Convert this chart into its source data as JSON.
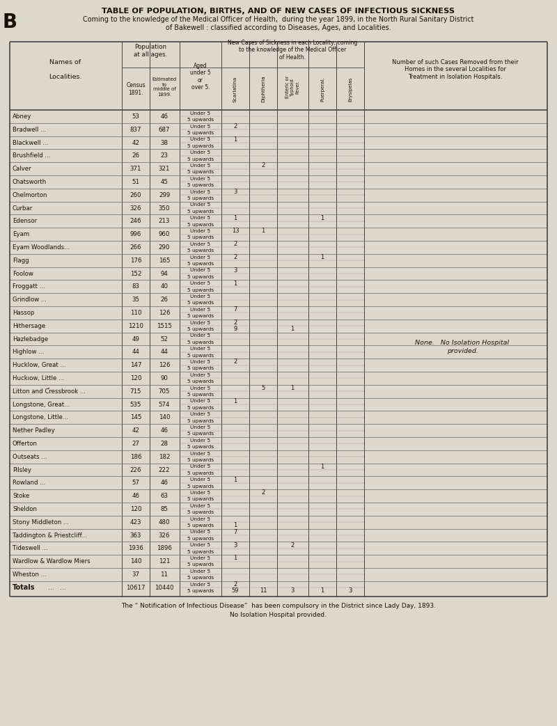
{
  "title1": "TABLE OF POPULATION, BIRTHS, AND OF NEW CASES OF INFECTIOUS SICKNESS",
  "title2": "Coming to the knowledge of the Medical Officer of Health,  during the year 1899, in the North Rural Sanitary District",
  "title3": "of Bakewell : classified according to Diseases, Ages, and Localities.",
  "left_letter": "B",
  "rows": [
    {
      "name": "Abney",
      "dots": "...  ...  ...",
      "census": "53",
      "est": "46",
      "scar_u5": "",
      "scar_5up": "",
      "diph_u5": "",
      "diph_5up": "",
      "ent_u5": "",
      "ent_5up": "",
      "puer_u5": "",
      "puer_5up": "",
      "erys_u5": "",
      "erys_5up": ""
    },
    {
      "name": "Bradwell ...",
      "dots": "...  ...",
      "census": "837",
      "est": "687",
      "scar_u5": "2",
      "scar_5up": "",
      "diph_u5": "",
      "diph_5up": "",
      "ent_u5": "",
      "ent_5up": "",
      "puer_u5": "",
      "puer_5up": "",
      "erys_u5": "",
      "erys_5up": ""
    },
    {
      "name": "Blackwell ...",
      "dots": "...  ...",
      "census": "42",
      "est": "38",
      "scar_u5": "1",
      "scar_5up": "",
      "diph_u5": "",
      "diph_5up": "",
      "ent_u5": "",
      "ent_5up": "",
      "puer_u5": "",
      "puer_5up": "",
      "erys_u5": "",
      "erys_5up": ""
    },
    {
      "name": "Brushfield ...",
      "dots": "...  ...",
      "census": "26",
      "est": "23",
      "scar_u5": "",
      "scar_5up": "",
      "diph_u5": "",
      "diph_5up": "",
      "ent_u5": "",
      "ent_5up": "",
      "puer_u5": "",
      "puer_5up": "",
      "erys_u5": "",
      "erys_5up": ""
    },
    {
      "name": "Calver",
      "dots": "...  ...  ...",
      "census": "371",
      "est": "321",
      "scar_u5": "",
      "scar_5up": "",
      "diph_u5": "2",
      "diph_5up": "",
      "ent_u5": "",
      "ent_5up": "",
      "puer_u5": "",
      "puer_5up": "",
      "erys_u5": "",
      "erys_5up": ""
    },
    {
      "name": "Chatsworth",
      "dots": "...  ...",
      "census": "51",
      "est": "45",
      "scar_u5": "",
      "scar_5up": "",
      "diph_u5": "",
      "diph_5up": "",
      "ent_u5": "",
      "ent_5up": "",
      "puer_u5": "",
      "puer_5up": "",
      "erys_u5": "",
      "erys_5up": ""
    },
    {
      "name": "Chelmorton",
      "dots": "...  ...",
      "census": "260",
      "est": "299",
      "scar_u5": "3",
      "scar_5up": "",
      "diph_u5": "",
      "diph_5up": "",
      "ent_u5": "",
      "ent_5up": "",
      "puer_u5": "",
      "puer_5up": "",
      "erys_u5": "",
      "erys_5up": ""
    },
    {
      "name": "Curbar",
      "dots": "...  ...  ...",
      "census": "326",
      "est": "350",
      "scar_u5": "",
      "scar_5up": "",
      "diph_u5": "",
      "diph_5up": "",
      "ent_u5": "",
      "ent_5up": "",
      "puer_u5": "",
      "puer_5up": "",
      "erys_u5": "",
      "erys_5up": ""
    },
    {
      "name": "Edensor",
      "dots": "...  ...  ...",
      "census": "246",
      "est": "213",
      "scar_u5": "1",
      "scar_5up": "",
      "diph_u5": "",
      "diph_5up": "",
      "ent_u5": "",
      "ent_5up": "",
      "puer_u5": "1",
      "puer_5up": "",
      "erys_u5": "",
      "erys_5up": ""
    },
    {
      "name": "Eyam",
      "dots": "...  ...  ...",
      "census": "996",
      "est": "960",
      "scar_u5": "13",
      "scar_5up": "",
      "diph_u5": "1",
      "diph_5up": "",
      "ent_u5": "",
      "ent_5up": "",
      "puer_u5": "",
      "puer_5up": "",
      "erys_u5": "",
      "erys_5up": ""
    },
    {
      "name": "Eyam Woodlands...",
      "dots": "...",
      "census": "266",
      "est": "290",
      "scar_u5": "2",
      "scar_5up": "",
      "diph_u5": "",
      "diph_5up": "",
      "ent_u5": "",
      "ent_5up": "",
      "puer_u5": "",
      "puer_5up": "",
      "erys_u5": "",
      "erys_5up": ""
    },
    {
      "name": "Flagg",
      "dots": "...  ...  ...",
      "census": "176",
      "est": "165",
      "scar_u5": "2",
      "scar_5up": "",
      "diph_u5": "",
      "diph_5up": "",
      "ent_u5": "",
      "ent_5up": "",
      "puer_u5": "1",
      "puer_5up": "",
      "erys_u5": "",
      "erys_5up": ""
    },
    {
      "name": "Foolow",
      "dots": "...  ...  ...",
      "census": "152",
      "est": "94",
      "scar_u5": "3",
      "scar_5up": "",
      "diph_u5": "",
      "diph_5up": "",
      "ent_u5": "",
      "ent_5up": "",
      "puer_u5": "",
      "puer_5up": "",
      "erys_u5": "",
      "erys_5up": ""
    },
    {
      "name": "Froggatt ...",
      "dots": "...  ...",
      "census": "83",
      "est": "40",
      "scar_u5": "1",
      "scar_5up": "",
      "diph_u5": "",
      "diph_5up": "",
      "ent_u5": "",
      "ent_5up": "",
      "puer_u5": "",
      "puer_5up": "",
      "erys_u5": "",
      "erys_5up": ""
    },
    {
      "name": "Grindlow ...",
      "dots": "...  ...",
      "census": "35",
      "est": "26",
      "scar_u5": "",
      "scar_5up": "",
      "diph_u5": "",
      "diph_5up": "",
      "ent_u5": "",
      "ent_5up": "",
      "puer_u5": "",
      "puer_5up": "",
      "erys_u5": "",
      "erys_5up": ""
    },
    {
      "name": "Hassop",
      "dots": "...  ...  ...",
      "census": "110",
      "est": "126",
      "scar_u5": "7",
      "scar_5up": "",
      "diph_u5": "",
      "diph_5up": "",
      "ent_u5": "",
      "ent_5up": "",
      "puer_u5": "",
      "puer_5up": "",
      "erys_u5": "",
      "erys_5up": ""
    },
    {
      "name": "Hıthersage",
      "dots": "...  ...",
      "census": "1210",
      "est": "1515",
      "scar_u5": "2",
      "scar_5up": "9",
      "diph_u5": "",
      "diph_5up": "",
      "ent_u5": "",
      "ent_5up": "1",
      "puer_u5": "",
      "puer_5up": "",
      "erys_u5": "",
      "erys_5up": ""
    },
    {
      "name": "Hazlebadge",
      "dots": "...  ...",
      "census": "49",
      "est": "52",
      "scar_u5": "",
      "scar_5up": "",
      "diph_u5": "",
      "diph_5up": "",
      "ent_u5": "",
      "ent_5up": "",
      "puer_u5": "",
      "puer_5up": "",
      "erys_u5": "",
      "erys_5up": ""
    },
    {
      "name": "Highlow ...",
      "dots": "...  ...",
      "census": "44",
      "est": "44",
      "scar_u5": "",
      "scar_5up": "",
      "diph_u5": "",
      "diph_5up": "",
      "ent_u5": "",
      "ent_5up": "",
      "puer_u5": "",
      "puer_5up": "",
      "erys_u5": "",
      "erys_5up": ""
    },
    {
      "name": "Hucklow, Great ...",
      "dots": "...",
      "census": "147",
      "est": "126",
      "scar_u5": "2",
      "scar_5up": "",
      "diph_u5": "",
      "diph_5up": "",
      "ent_u5": "",
      "ent_5up": "",
      "puer_u5": "",
      "puer_5up": "",
      "erys_u5": "",
      "erys_5up": ""
    },
    {
      "name": "Huckıow, Little ...",
      "dots": "...",
      "census": "120",
      "est": "90",
      "scar_u5": "",
      "scar_5up": "",
      "diph_u5": "",
      "diph_5up": "",
      "ent_u5": "",
      "ent_5up": "",
      "puer_u5": "",
      "puer_5up": "",
      "erys_u5": "",
      "erys_5up": ""
    },
    {
      "name": "Litton and Ƈressbrook ...",
      "dots": "",
      "census": "715",
      "est": "705",
      "scar_u5": "",
      "scar_5up": "",
      "diph_u5": "5",
      "diph_5up": "",
      "ent_u5": "1",
      "ent_5up": "",
      "puer_u5": "",
      "puer_5up": "",
      "erys_u5": "",
      "erys_5up": ""
    },
    {
      "name": "Longstone, Great...",
      "dots": "...",
      "census": "535",
      "est": "574",
      "scar_u5": "1",
      "scar_5up": "",
      "diph_u5": "",
      "diph_5up": "",
      "ent_u5": "",
      "ent_5up": "",
      "puer_u5": "",
      "puer_5up": "",
      "erys_u5": "",
      "erys_5up": ""
    },
    {
      "name": "Longstone, Little...",
      "dots": "...",
      "census": "145",
      "est": "140",
      "scar_u5": "",
      "scar_5up": "",
      "diph_u5": "",
      "diph_5up": "",
      "ent_u5": "",
      "ent_5up": "",
      "puer_u5": "",
      "puer_5up": "",
      "erys_u5": "",
      "erys_5up": ""
    },
    {
      "name": "Nether Padley",
      "dots": "...  ...",
      "census": "42",
      "est": "46",
      "scar_u5": "",
      "scar_5up": "",
      "diph_u5": "",
      "diph_5up": "",
      "ent_u5": "",
      "ent_5up": "",
      "puer_u5": "",
      "puer_5up": "",
      "erys_u5": "",
      "erys_5up": ""
    },
    {
      "name": "Offerton",
      "dots": "...  ...  ...",
      "census": "27",
      "est": "28",
      "scar_u5": "",
      "scar_5up": "",
      "diph_u5": "",
      "diph_5up": "",
      "ent_u5": "",
      "ent_5up": "",
      "puer_u5": "",
      "puer_5up": "",
      "erys_u5": "",
      "erys_5up": ""
    },
    {
      "name": "Outseats ...",
      "dots": "...  ...",
      "census": "186",
      "est": "182",
      "scar_u5": "",
      "scar_5up": "",
      "diph_u5": "",
      "diph_5up": "",
      "ent_u5": "",
      "ent_5up": "",
      "puer_u5": "",
      "puer_5up": "",
      "erys_u5": "",
      "erys_5up": ""
    },
    {
      "name": "Pilsley",
      "dots": "...  ...  ...",
      "census": "226",
      "est": "222",
      "scar_u5": "",
      "scar_5up": "",
      "diph_u5": "",
      "diph_5up": "",
      "ent_u5": "",
      "ent_5up": "",
      "puer_u5": "1",
      "puer_5up": "",
      "erys_u5": "",
      "erys_5up": ""
    },
    {
      "name": "Rowland ...",
      "dots": "...  ...",
      "census": "57",
      "est": "46",
      "scar_u5": "1",
      "scar_5up": "",
      "diph_u5": "",
      "diph_5up": "",
      "ent_u5": "",
      "ent_5up": "",
      "puer_u5": "",
      "puer_5up": "",
      "erys_u5": "",
      "erys_5up": ""
    },
    {
      "name": "Stoke",
      "dots": "...  ...  ...",
      "census": "46",
      "est": "63",
      "scar_u5": "",
      "scar_5up": "",
      "diph_u5": "2",
      "diph_5up": "",
      "ent_u5": "",
      "ent_5up": "",
      "puer_u5": "",
      "puer_5up": "",
      "erys_u5": "",
      "erys_5up": ""
    },
    {
      "name": "Sheldon",
      "dots": "...  ...  ...",
      "census": "120",
      "est": "85",
      "scar_u5": "",
      "scar_5up": "",
      "diph_u5": "",
      "diph_5up": "",
      "ent_u5": "",
      "ent_5up": "",
      "puer_u5": "",
      "puer_5up": "",
      "erys_u5": "",
      "erys_5up": ""
    },
    {
      "name": "Stony Middleton ...",
      "dots": "...",
      "census": "423",
      "est": "480",
      "scar_u5": "",
      "scar_5up": "1",
      "diph_u5": "",
      "diph_5up": "",
      "ent_u5": "",
      "ent_5up": "",
      "puer_u5": "",
      "puer_5up": "",
      "erys_u5": "",
      "erys_5up": ""
    },
    {
      "name": "Taddington & Priestcliff...",
      "dots": "",
      "census": "363",
      "est": "326",
      "scar_u5": "7",
      "scar_5up": "",
      "diph_u5": "",
      "diph_5up": "",
      "ent_u5": "",
      "ent_5up": "",
      "puer_u5": "",
      "puer_5up": "",
      "erys_u5": "",
      "erys_5up": ""
    },
    {
      "name": "Tideswell ...",
      "dots": "...  ...",
      "census": "1936",
      "est": "1896",
      "scar_u5": "3",
      "scar_5up": "",
      "diph_u5": "",
      "diph_5up": "",
      "ent_u5": "2",
      "ent_5up": "",
      "puer_u5": "",
      "puer_5up": "",
      "erys_u5": "",
      "erys_5up": ""
    },
    {
      "name": "Wardlow & Wardlow Miers",
      "dots": "",
      "census": "140",
      "est": "121",
      "scar_u5": "1",
      "scar_5up": "",
      "diph_u5": "",
      "diph_5up": "",
      "ent_u5": "",
      "ent_5up": "",
      "puer_u5": "",
      "puer_5up": "",
      "erys_u5": "",
      "erys_5up": ""
    },
    {
      "name": "Wheston ...",
      "dots": "...  ...",
      "census": "37",
      "est": "11",
      "scar_u5": "",
      "scar_5up": "",
      "diph_u5": "",
      "diph_5up": "",
      "ent_u5": "",
      "ent_5up": "",
      "puer_u5": "",
      "puer_5up": "",
      "erys_u5": "",
      "erys_5up": ""
    }
  ],
  "totals": {
    "census": "10617",
    "est": "10440",
    "scar_u5": "2",
    "scar_5up": "59",
    "diph_u5": "",
    "diph_5up": "11",
    "ent_u5": "",
    "ent_5up": "3",
    "puer_u5": "",
    "puer_5up": "1",
    "erys_u5": "",
    "erys_5up": "3"
  },
  "footer1": "The “ Notification of Infectious Disease”  has been compulsory in the District since Lady Day, 1893.",
  "footer2": "No Isolation Hospital provided.",
  "none_line1": "None.   No Isolation Hospital",
  "none_line2": "provided.",
  "bg_color": "#ddd8cc",
  "text_color": "#1a1008",
  "line_color": "#444440"
}
